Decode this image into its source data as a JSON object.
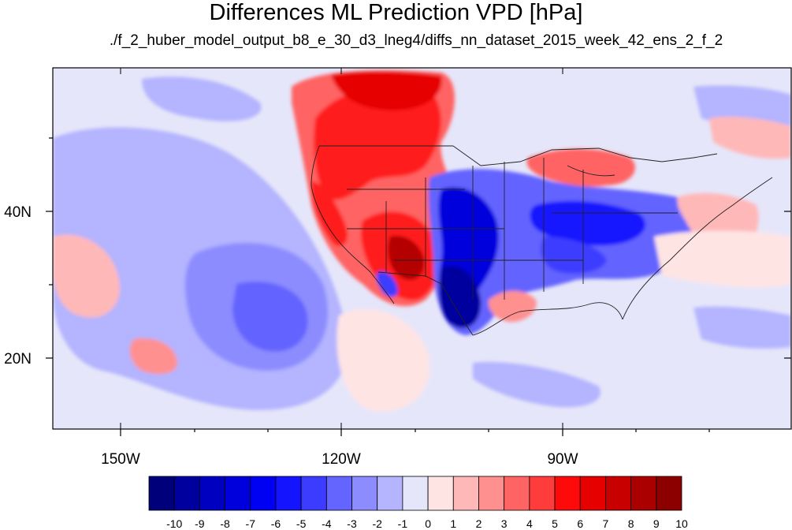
{
  "title": "Differences ML Prediction VPD [hPa]",
  "subtitle": "./f_2_huber_model_output_b8_e_30_d3_lneg4/diffs_nn_dataset_2015_week_42_ens_2_f_2",
  "axes": {
    "lon_labels": [
      "150W",
      "120W",
      "90W"
    ],
    "lat_labels": [
      "40N",
      "20N"
    ]
  },
  "colorbar": {
    "labels": [
      "-10",
      "-9",
      "-8",
      "-7",
      "-6",
      "-5",
      "-4",
      "-3",
      "-2",
      "-1",
      "0",
      "1",
      "2",
      "3",
      "4",
      "5",
      "6",
      "7",
      "8",
      "9",
      "10"
    ],
    "colors": [
      "#00007a",
      "#00009e",
      "#0000c0",
      "#0000dc",
      "#0000f2",
      "#1414ff",
      "#3c3cff",
      "#6464ff",
      "#8c8cff",
      "#b4b4ff",
      "#e6e6fa",
      "#ffe4e4",
      "#ffb8b8",
      "#ff9090",
      "#ff6464",
      "#ff3c3c",
      "#ff0a0a",
      "#e60000",
      "#c80000",
      "#aa0000",
      "#8c0000"
    ]
  },
  "map_colors": {
    "background": "#e6e6fa",
    "light_blue": "#b4b4ff",
    "mid_blue": "#8c8cff",
    "blue": "#3c3cff",
    "dark_blue": "#0000dc",
    "light_red": "#ffb8b8",
    "mid_red": "#ff6464",
    "red": "#ff1a1a",
    "dark_red": "#b40000",
    "pale_pink": "#ffe4e4"
  }
}
